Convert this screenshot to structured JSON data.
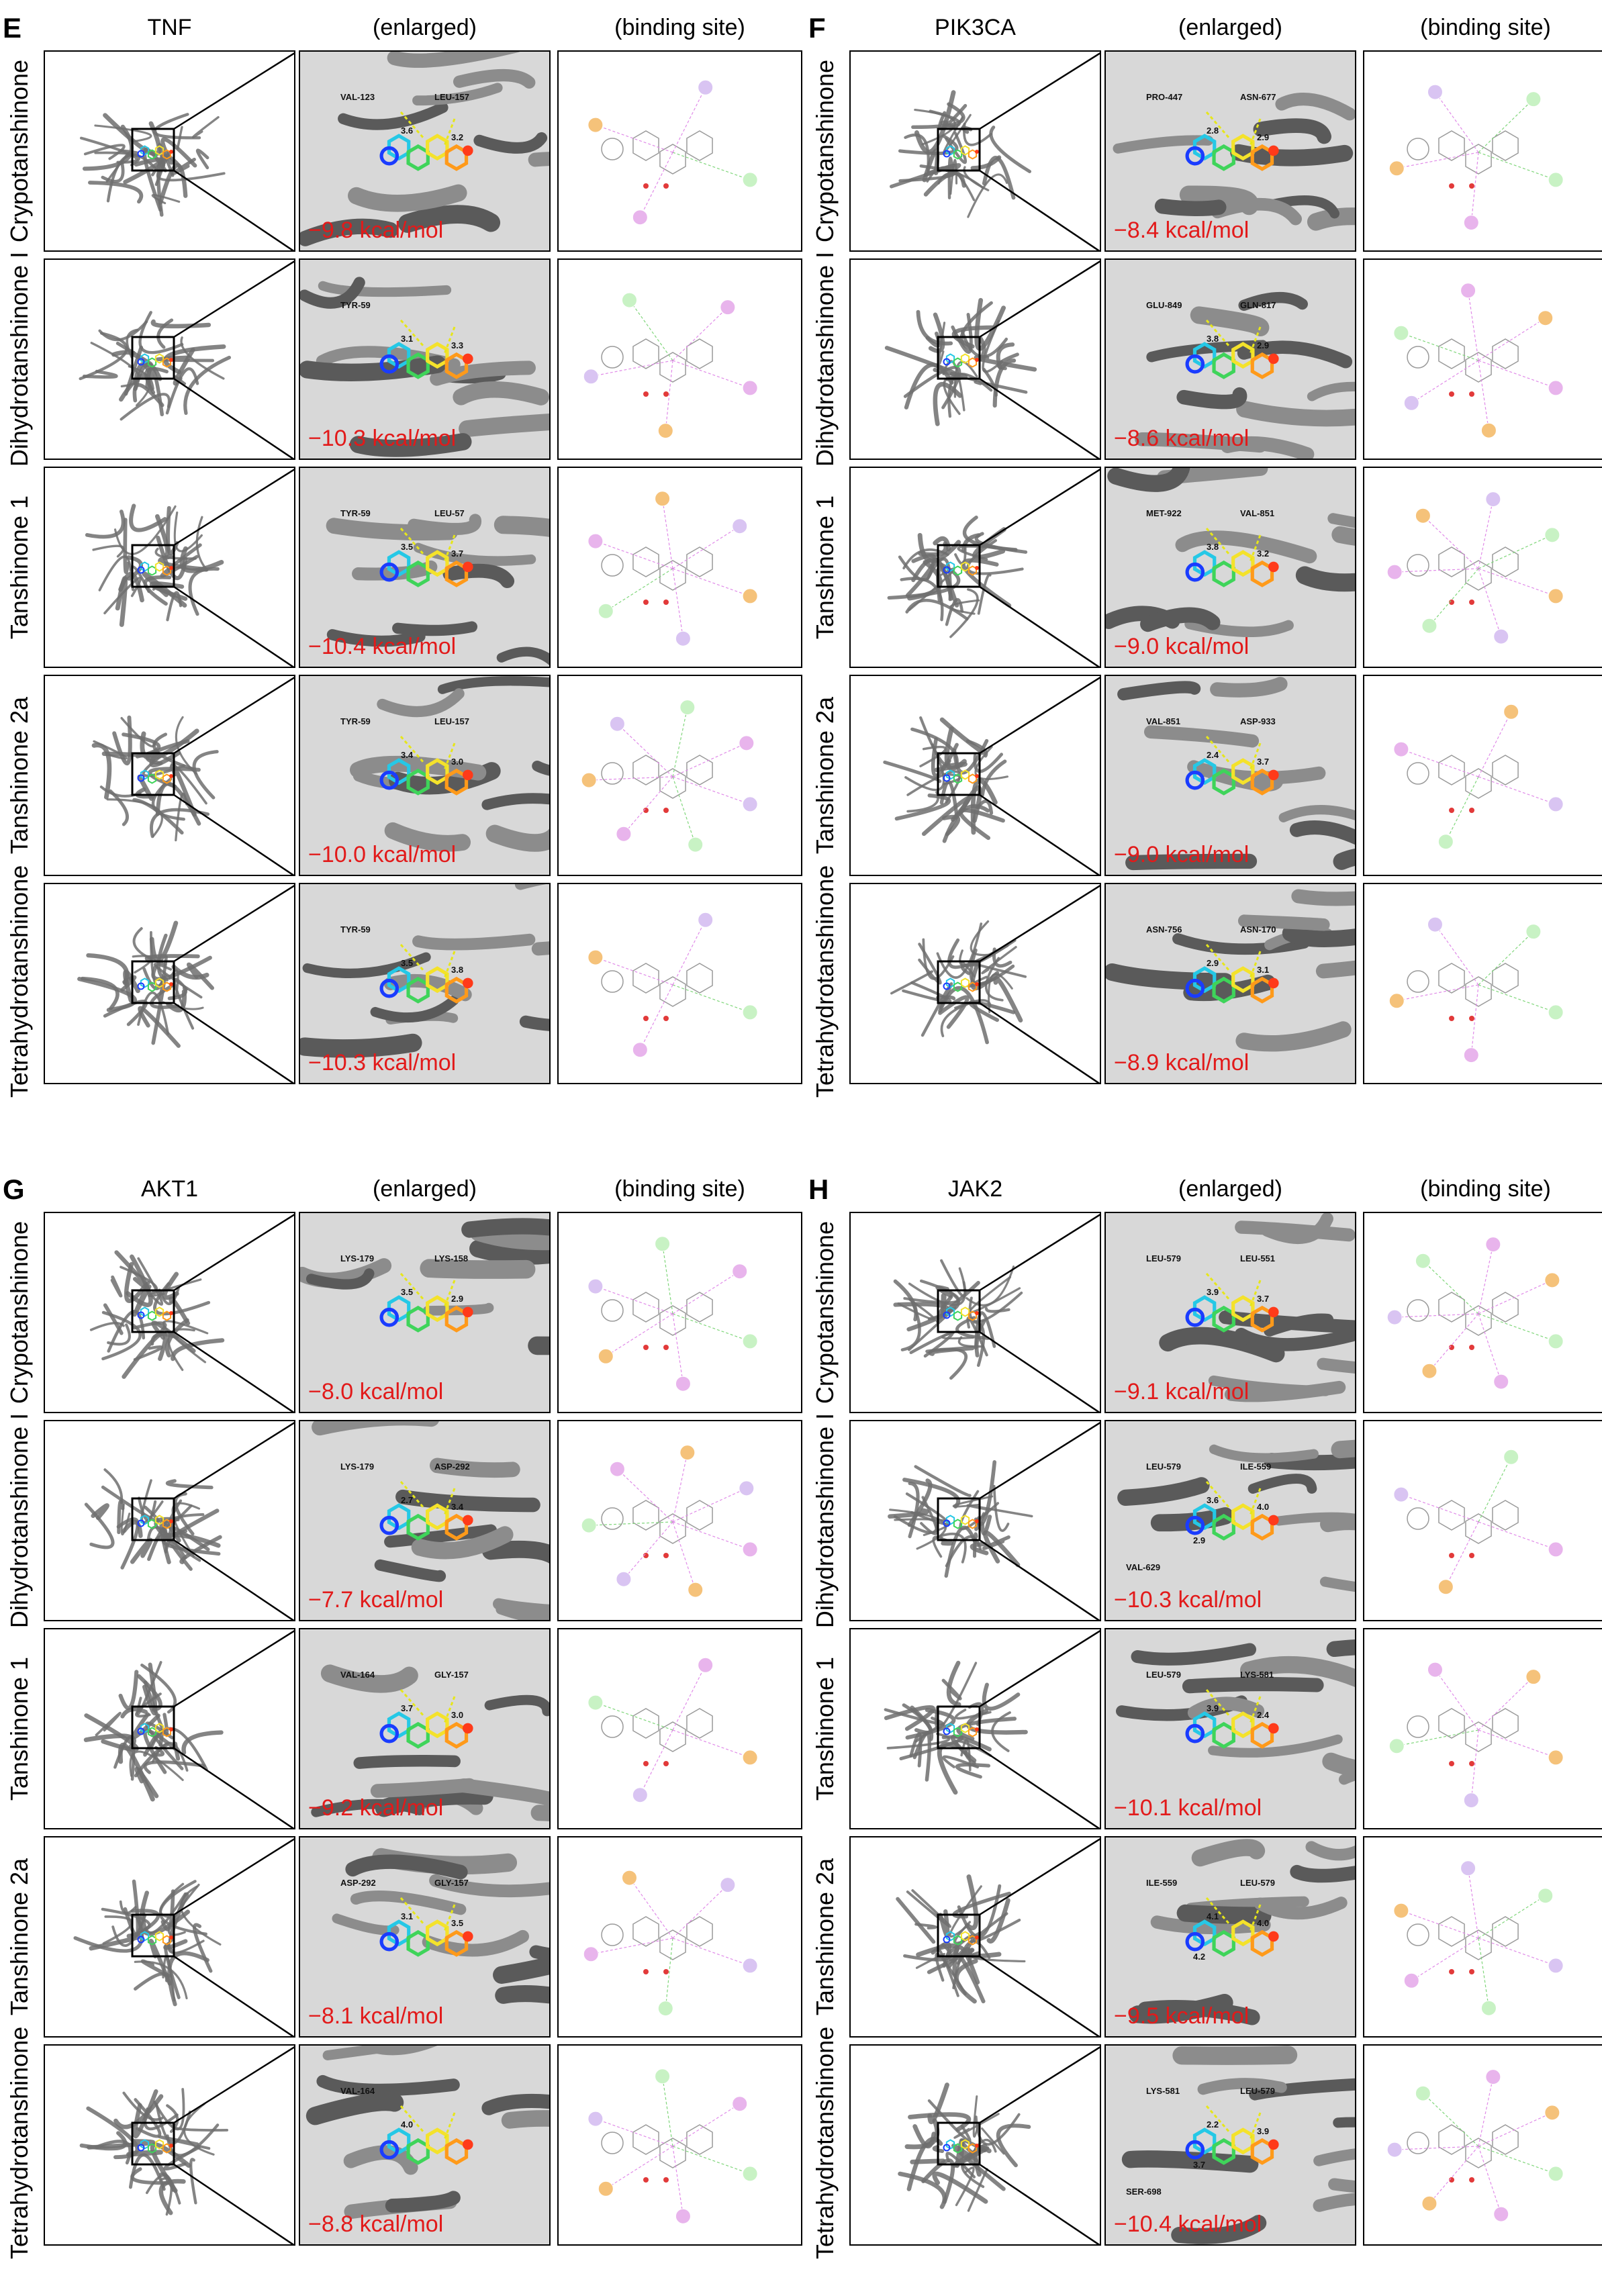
{
  "column_headers": {
    "enlarged": "(enlarged)",
    "binding_site": "(binding site)"
  },
  "row_labels": [
    "Crypotanshinone",
    "Dihydrotanshinone I",
    "Tanshinone 1",
    "Tanshinone 2a",
    "Tetrahydrotanshinone"
  ],
  "panels": [
    {
      "letter": "E",
      "target": "TNF",
      "rows": [
        {
          "energy": "−9.8 kcal/mol",
          "residues": [
            "VAL-123",
            "LEU-157"
          ],
          "distances": [
            "3.6",
            "3.2"
          ]
        },
        {
          "energy": "−10.3 kcal/mol",
          "residues": [
            "TYR-59"
          ],
          "distances": [
            "3.1",
            "3.3"
          ]
        },
        {
          "energy": "−10.4 kcal/mol",
          "residues": [
            "TYR-59",
            "LEU-57"
          ],
          "distances": [
            "3.5",
            "3.7"
          ]
        },
        {
          "energy": "−10.0 kcal/mol",
          "residues": [
            "TYR-59",
            "LEU-157"
          ],
          "distances": [
            "3.4",
            "3.0"
          ]
        },
        {
          "energy": "−10.3 kcal/mol",
          "residues": [
            "TYR-59"
          ],
          "distances": [
            "3.5",
            "3.8"
          ]
        }
      ]
    },
    {
      "letter": "F",
      "target": "PIK3CA",
      "rows": [
        {
          "energy": "−8.4 kcal/mol",
          "residues": [
            "PRO-447",
            "ASN-677"
          ],
          "distances": [
            "2.8",
            "2.9"
          ]
        },
        {
          "energy": "−8.6 kcal/mol",
          "residues": [
            "GLU-849",
            "GLN-817"
          ],
          "distances": [
            "3.8",
            "2.9"
          ]
        },
        {
          "energy": "−9.0 kcal/mol",
          "residues": [
            "MET-922",
            "VAL-851"
          ],
          "distances": [
            "3.8",
            "3.2"
          ]
        },
        {
          "energy": "−9.0 kcal/mol",
          "residues": [
            "VAL-851",
            "ASP-933"
          ],
          "distances": [
            "2.4",
            "3.7"
          ]
        },
        {
          "energy": "−8.9 kcal/mol",
          "residues": [
            "ASN-756",
            "ASN-170"
          ],
          "distances": [
            "2.9",
            "3.1"
          ]
        }
      ]
    },
    {
      "letter": "G",
      "target": "AKT1",
      "rows": [
        {
          "energy": "−8.0 kcal/mol",
          "residues": [
            "LYS-179",
            "LYS-158"
          ],
          "distances": [
            "3.5",
            "2.9"
          ]
        },
        {
          "energy": "−7.7 kcal/mol",
          "residues": [
            "LYS-179",
            "ASP-292"
          ],
          "distances": [
            "2.7",
            "3.4"
          ]
        },
        {
          "energy": "−9.2 kcal/mol",
          "residues": [
            "VAL-164",
            "GLY-157"
          ],
          "distances": [
            "3.7",
            "3.0"
          ]
        },
        {
          "energy": "−8.1 kcal/mol",
          "residues": [
            "ASP-292",
            "GLY-157"
          ],
          "distances": [
            "3.1",
            "3.5"
          ]
        },
        {
          "energy": "−8.8 kcal/mol",
          "residues": [
            "VAL-164"
          ],
          "distances": [
            "4.0"
          ]
        }
      ]
    },
    {
      "letter": "H",
      "target": "JAK2",
      "rows": [
        {
          "energy": "−9.1 kcal/mol",
          "residues": [
            "LEU-579",
            "LEU-551"
          ],
          "distances": [
            "3.9",
            "3.7"
          ]
        },
        {
          "energy": "−10.3 kcal/mol",
          "residues": [
            "LEU-579",
            "ILE-559",
            "VAL-629"
          ],
          "distances": [
            "3.6",
            "4.0",
            "2.9"
          ]
        },
        {
          "energy": "−10.1 kcal/mol",
          "residues": [
            "LEU-579",
            "LYS-581"
          ],
          "distances": [
            "3.9",
            "2.4"
          ]
        },
        {
          "energy": "−9.5 kcal/mol",
          "residues": [
            "ILE-559",
            "LEU-579"
          ],
          "distances": [
            "4.1",
            "4.0",
            "4.2"
          ]
        },
        {
          "energy": "−10.4 kcal/mol",
          "residues": [
            "LYS-581",
            "LEU-579",
            "SER-698"
          ],
          "distances": [
            "2.2",
            "3.9",
            "3.7"
          ]
        }
      ]
    }
  ]
}
